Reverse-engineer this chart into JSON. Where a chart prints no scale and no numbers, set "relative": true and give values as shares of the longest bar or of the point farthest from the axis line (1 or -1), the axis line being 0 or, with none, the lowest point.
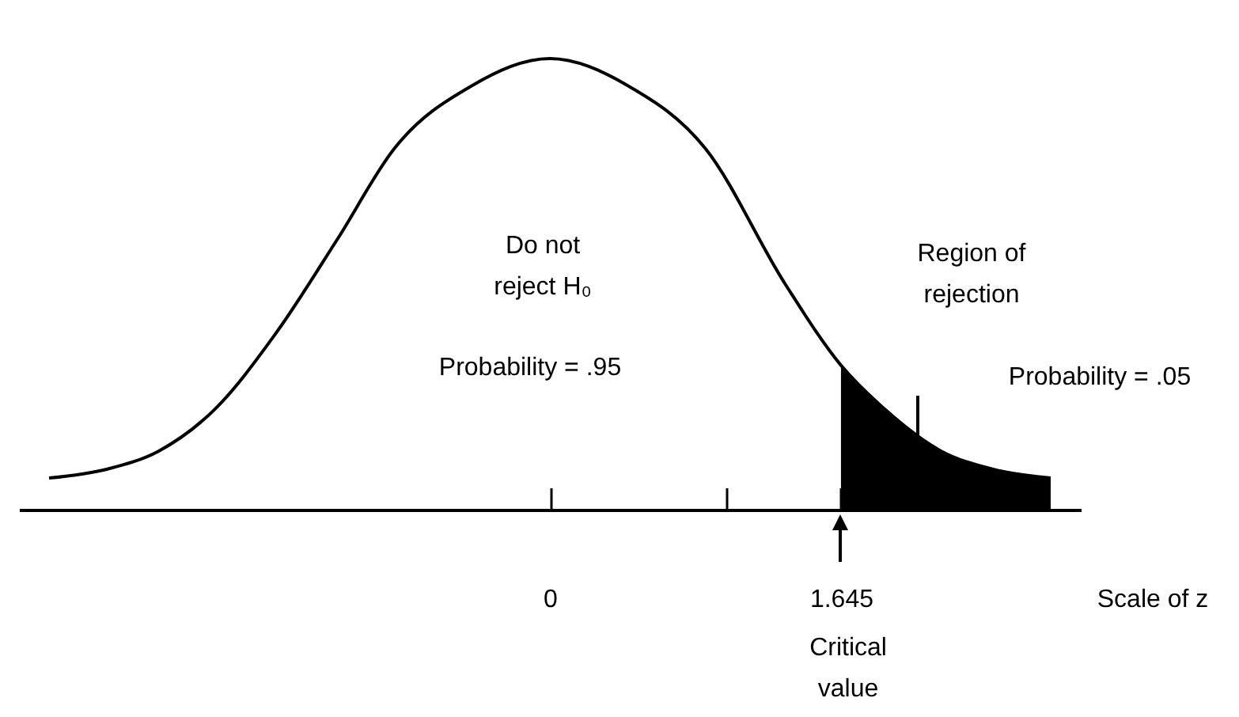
{
  "chart_data": {
    "type": "line",
    "relative": true,
    "xlim": [
      -3,
      3
    ],
    "xticks": [
      0,
      {
        "value": 1,
        "label": null
      },
      1.645
    ],
    "xlabel": "Scale of z",
    "grid": false,
    "marker": "none",
    "line_style": "solid",
    "annotations": [
      "Do not\nreject H₀",
      "Probability = .95",
      "Region of\nrejection",
      "Probability = .05",
      "Critical\nvalue"
    ],
    "series": [
      {
        "color": "#000000",
        "x": [
          -2.83,
          -2.5,
          -2.21,
          -1.9,
          -1.55,
          -1.2,
          -0.88,
          -0.44,
          0,
          0.44,
          0.88,
          1.33,
          1.645,
          1.9,
          2.21,
          2.5,
          2.83
        ],
        "values": [
          0.07,
          0.09,
          0.13,
          0.22,
          0.39,
          0.6,
          0.8,
          0.94,
          1,
          0.94,
          0.8,
          0.5,
          0.32,
          0.22,
          0.13,
          0.09,
          0.07
        ]
      },
      {
        "type": "area",
        "color": "#000000",
        "x": [
          1.645,
          1.9,
          2.21,
          2.5,
          2.83
        ],
        "values": [
          0.32,
          0.22,
          0.13,
          0.09,
          0.07
        ]
      }
    ]
  }
}
